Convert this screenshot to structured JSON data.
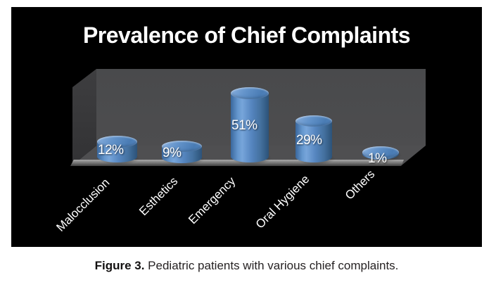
{
  "figure": {
    "caption_label": "Figure 3.",
    "caption_text": " Pediatric patients with various chief complaints."
  },
  "chart_data": {
    "type": "bar",
    "subtype": "3d-cylinder",
    "title": "Prevalence of Chief Complaints",
    "categories": [
      "Malocclusion",
      "Esthetics",
      "Emergency",
      "Oral Hygiene",
      "Others"
    ],
    "values": [
      12,
      9,
      51,
      29,
      1
    ],
    "unit": "percent",
    "data_labels": [
      "12%",
      "9%",
      "51%",
      "29%",
      "1%"
    ],
    "xlabel": "",
    "ylabel": "",
    "ylim": [
      0,
      60
    ],
    "legend": false,
    "grid": false,
    "colors": {
      "background": "#000000",
      "bar": "#4f81bd",
      "bar_highlight": "#77a5da",
      "bar_shade": "#2c5278",
      "wall": "#4a4a4c",
      "side_wall": "#3a3a3c",
      "floor": "#4f4f51",
      "floor_edge_highlight": "#a9a9a9",
      "text": "#ffffff",
      "caption_text": "#262223"
    }
  }
}
